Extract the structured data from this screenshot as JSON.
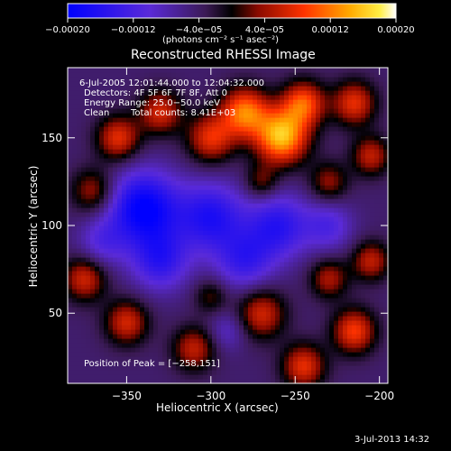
{
  "chart_data": {
    "type": "heatmap",
    "title": "Reconstructed RHESSI Image",
    "xlabel": "Heliocentric X (arcsec)",
    "ylabel": "Heliocentric Y (arcsec)",
    "xlim": [
      -385,
      -195
    ],
    "ylim": [
      10,
      190
    ],
    "x_ticks": [
      -350,
      -300,
      -250,
      -200
    ],
    "y_ticks": [
      50,
      100,
      150
    ],
    "x_tick_labels": [
      "−350",
      "−300",
      "−250",
      "−200"
    ],
    "y_tick_labels": [
      "50",
      "100",
      "150"
    ],
    "colorbar": {
      "range": [
        -0.0002,
        0.0002
      ],
      "ticks": [
        -0.0002,
        -0.00012,
        -4e-05,
        4e-05,
        0.00012,
        0.0002
      ],
      "tick_labels": [
        "−0.00020",
        "−0.00012",
        "−4.0e−05",
        "4.0e−05",
        "0.00012",
        "0.00020"
      ],
      "units": "(photons cm⁻² s⁻¹ asec⁻²)",
      "colormap": "blue-purple-red-yellow-white"
    },
    "annotations": {
      "time_range": "6‑Jul‑2005 12:01:44.000 to 12:04:32.000",
      "detectors": "Detectors: 4F 5F 6F 7F 8F, Att 0",
      "energy_range": "Energy Range: 25.0−50.0 keV",
      "clean": "Clean",
      "total_counts": "Total counts: 8.41E+03",
      "peak": "Position of Peak = [−258,151]"
    },
    "sources": [
      {
        "x": -258,
        "y": 151,
        "amp": 1.0,
        "sigma": 11
      },
      {
        "x": -280,
        "y": 165,
        "amp": 0.8,
        "sigma": 10
      },
      {
        "x": -245,
        "y": 170,
        "amp": 0.7,
        "sigma": 9
      },
      {
        "x": -300,
        "y": 150,
        "amp": 0.6,
        "sigma": 10
      },
      {
        "x": -330,
        "y": 165,
        "amp": 0.55,
        "sigma": 9
      },
      {
        "x": -355,
        "y": 150,
        "amp": 0.6,
        "sigma": 9
      },
      {
        "x": -370,
        "y": 120,
        "amp": 0.45,
        "sigma": 9
      },
      {
        "x": -215,
        "y": 170,
        "amp": 0.6,
        "sigma": 9
      },
      {
        "x": -205,
        "y": 140,
        "amp": 0.5,
        "sigma": 8
      },
      {
        "x": -230,
        "y": 125,
        "amp": 0.4,
        "sigma": 8
      },
      {
        "x": -270,
        "y": 125,
        "amp": 0.35,
        "sigma": 7
      },
      {
        "x": -375,
        "y": 70,
        "amp": 0.55,
        "sigma": 9
      },
      {
        "x": -350,
        "y": 45,
        "amp": 0.55,
        "sigma": 9
      },
      {
        "x": -310,
        "y": 30,
        "amp": 0.5,
        "sigma": 9
      },
      {
        "x": -270,
        "y": 50,
        "amp": 0.55,
        "sigma": 10
      },
      {
        "x": -245,
        "y": 20,
        "amp": 0.6,
        "sigma": 9
      },
      {
        "x": -215,
        "y": 40,
        "amp": 0.65,
        "sigma": 9
      },
      {
        "x": -205,
        "y": 80,
        "amp": 0.5,
        "sigma": 8
      },
      {
        "x": -230,
        "y": 70,
        "amp": 0.45,
        "sigma": 8
      },
      {
        "x": -300,
        "y": 60,
        "amp": 0.3,
        "sigma": 7
      },
      {
        "x": -340,
        "y": 110,
        "amp": -0.8,
        "sigma": 15
      },
      {
        "x": -300,
        "y": 105,
        "amp": -0.6,
        "sigma": 14
      },
      {
        "x": -260,
        "y": 100,
        "amp": -0.55,
        "sigma": 13
      },
      {
        "x": -330,
        "y": 80,
        "amp": -0.5,
        "sigma": 12
      },
      {
        "x": -280,
        "y": 80,
        "amp": -0.45,
        "sigma": 12
      },
      {
        "x": -230,
        "y": 100,
        "amp": -0.35,
        "sigma": 10
      },
      {
        "x": -290,
        "y": 40,
        "amp": -0.25,
        "sigma": 8
      },
      {
        "x": -365,
        "y": 90,
        "amp": -0.3,
        "sigma": 10
      }
    ]
  },
  "footer": {
    "timestamp": "3‑Jul‑2013 14:32"
  }
}
